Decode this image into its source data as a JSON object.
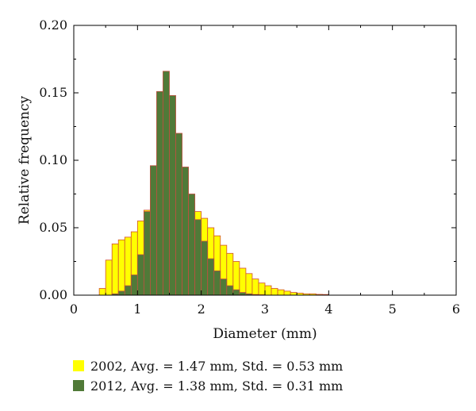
{
  "chart_data": {
    "type": "bar",
    "xlabel": "Diameter (mm)",
    "ylabel": "Relative frequency",
    "xlim": [
      0,
      6
    ],
    "ylim": [
      0,
      0.2
    ],
    "xticks": [
      0,
      1,
      2,
      3,
      4,
      5,
      6
    ],
    "yticks": [
      0.0,
      0.05,
      0.1,
      0.15,
      0.2
    ],
    "ytick_labels": [
      "0.00",
      "0.05",
      "0.10",
      "0.15",
      "0.20"
    ],
    "bin_width": 0.1,
    "bin_edges_start": 0.4,
    "legend_position": "bottom",
    "series": [
      {
        "name": "2002, Avg. = 1.47 mm, Std. = 0.53 mm",
        "color": "#ffff00",
        "edge": "#d05030",
        "values": [
          0.005,
          0.026,
          0.038,
          0.041,
          0.043,
          0.047,
          0.055,
          0.063,
          0.068,
          0.072,
          0.074,
          0.074,
          0.074,
          0.072,
          0.068,
          0.062,
          0.057,
          0.05,
          0.044,
          0.037,
          0.031,
          0.025,
          0.02,
          0.016,
          0.012,
          0.009,
          0.007,
          0.005,
          0.004,
          0.003,
          0.002,
          0.0015,
          0.001,
          0.001,
          0.0006,
          0.0005
        ]
      },
      {
        "name": "2012, Avg. = 1.38 mm, Std. = 0.31 mm",
        "color": "#507a38",
        "edge": "#c05040",
        "values": [
          0.0,
          0.0,
          0.001,
          0.003,
          0.007,
          0.015,
          0.03,
          0.062,
          0.096,
          0.151,
          0.166,
          0.148,
          0.12,
          0.095,
          0.075,
          0.056,
          0.04,
          0.027,
          0.018,
          0.012,
          0.007,
          0.004,
          0.002,
          0.001,
          0.0005,
          0.0003,
          0,
          0,
          0,
          0,
          0,
          0,
          0,
          0,
          0,
          0
        ]
      }
    ]
  }
}
